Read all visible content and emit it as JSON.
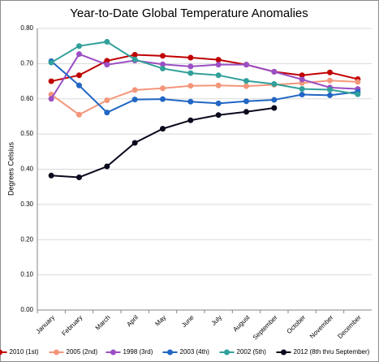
{
  "chart_data": {
    "type": "line",
    "title": "Year-to-Date Global Temperature Anomalies",
    "y_label": "Degrees Celsius",
    "categories": [
      "January",
      "February",
      "March",
      "April",
      "May",
      "June",
      "July",
      "August",
      "September",
      "October",
      "November",
      "December"
    ],
    "series": [
      {
        "name": "2010 (1st)",
        "color": "#c00000",
        "values": [
          0.65,
          0.667,
          0.708,
          0.725,
          0.722,
          0.717,
          0.711,
          0.697,
          0.677,
          0.667,
          0.675,
          0.656
        ]
      },
      {
        "name": "2005 (2nd)",
        "color": "#f4967a",
        "values": [
          0.612,
          0.555,
          0.596,
          0.625,
          0.63,
          0.637,
          0.638,
          0.636,
          0.64,
          0.645,
          0.652,
          0.648
        ]
      },
      {
        "name": "1998 (3rd)",
        "color": "#9b4fc4",
        "values": [
          0.6,
          0.727,
          0.697,
          0.709,
          0.698,
          0.692,
          0.697,
          0.697,
          0.677,
          0.655,
          0.632,
          0.628
        ]
      },
      {
        "name": "2003 (4th)",
        "color": "#2166c4",
        "values": [
          0.707,
          0.638,
          0.561,
          0.598,
          0.599,
          0.592,
          0.587,
          0.593,
          0.597,
          0.612,
          0.61,
          0.62
        ]
      },
      {
        "name": "2002 (5th)",
        "color": "#31a09a",
        "values": [
          0.703,
          0.75,
          0.762,
          0.712,
          0.686,
          0.673,
          0.667,
          0.651,
          0.642,
          0.628,
          0.626,
          0.613
        ]
      },
      {
        "name": "2012 (8th thru September)",
        "color": "#0a0a1e",
        "values": [
          0.382,
          0.377,
          0.408,
          0.475,
          0.515,
          0.539,
          0.554,
          0.563,
          0.574,
          null,
          null,
          null
        ]
      }
    ],
    "ylim": [
      0,
      0.8
    ],
    "yticks": [
      {
        "value": 0,
        "label": "0.00"
      },
      {
        "value": 0.1,
        "label": "0.10"
      },
      {
        "value": 0.2,
        "label": "0.20"
      },
      {
        "value": 0.3,
        "label": "0.30"
      },
      {
        "value": 0.4,
        "label": "0.40"
      },
      {
        "value": 0.5,
        "label": "0.50"
      },
      {
        "value": 0.6,
        "label": "0.60"
      },
      {
        "value": 0.7,
        "label": "0.70"
      },
      {
        "value": 0.8,
        "label": "0.80"
      }
    ],
    "grid": true,
    "legend": "bottom"
  }
}
